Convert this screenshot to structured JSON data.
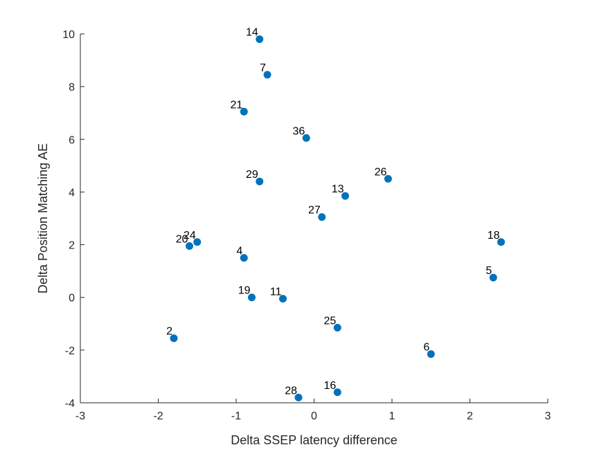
{
  "chart_data": {
    "type": "scatter",
    "title": "",
    "xlabel": "Delta SSEP latency difference",
    "ylabel": "Delta Position Matching AE",
    "xlim": [
      -3,
      3
    ],
    "ylim": [
      -4,
      10
    ],
    "xticks": [
      -3,
      -2,
      -1,
      0,
      1,
      2,
      3
    ],
    "yticks": [
      -4,
      -2,
      0,
      2,
      4,
      6,
      8,
      10
    ],
    "grid": false,
    "marker_color": "#0072BD",
    "points": [
      {
        "label": "14",
        "x": -0.7,
        "y": 9.8
      },
      {
        "label": "7",
        "x": -0.6,
        "y": 8.45
      },
      {
        "label": "21",
        "x": -0.9,
        "y": 7.05
      },
      {
        "label": "36",
        "x": -0.1,
        "y": 6.05
      },
      {
        "label": "26",
        "x": 0.95,
        "y": 4.5
      },
      {
        "label": "29",
        "x": -0.7,
        "y": 4.4
      },
      {
        "label": "13",
        "x": 0.4,
        "y": 3.85
      },
      {
        "label": "27",
        "x": 0.1,
        "y": 3.05
      },
      {
        "label": "24",
        "x": -1.5,
        "y": 2.1
      },
      {
        "label": "20",
        "x": -1.6,
        "y": 1.95
      },
      {
        "label": "18",
        "x": 2.4,
        "y": 2.1
      },
      {
        "label": "4",
        "x": -0.9,
        "y": 1.5
      },
      {
        "label": "5",
        "x": 2.3,
        "y": 0.75
      },
      {
        "label": "19",
        "x": -0.8,
        "y": 0.0
      },
      {
        "label": "11",
        "x": -0.4,
        "y": -0.05
      },
      {
        "label": "25",
        "x": 0.3,
        "y": -1.15
      },
      {
        "label": "2",
        "x": -1.8,
        "y": -1.55
      },
      {
        "label": "6",
        "x": 1.5,
        "y": -2.15
      },
      {
        "label": "16",
        "x": 0.3,
        "y": -3.6
      },
      {
        "label": "28",
        "x": -0.2,
        "y": -3.8
      }
    ]
  }
}
